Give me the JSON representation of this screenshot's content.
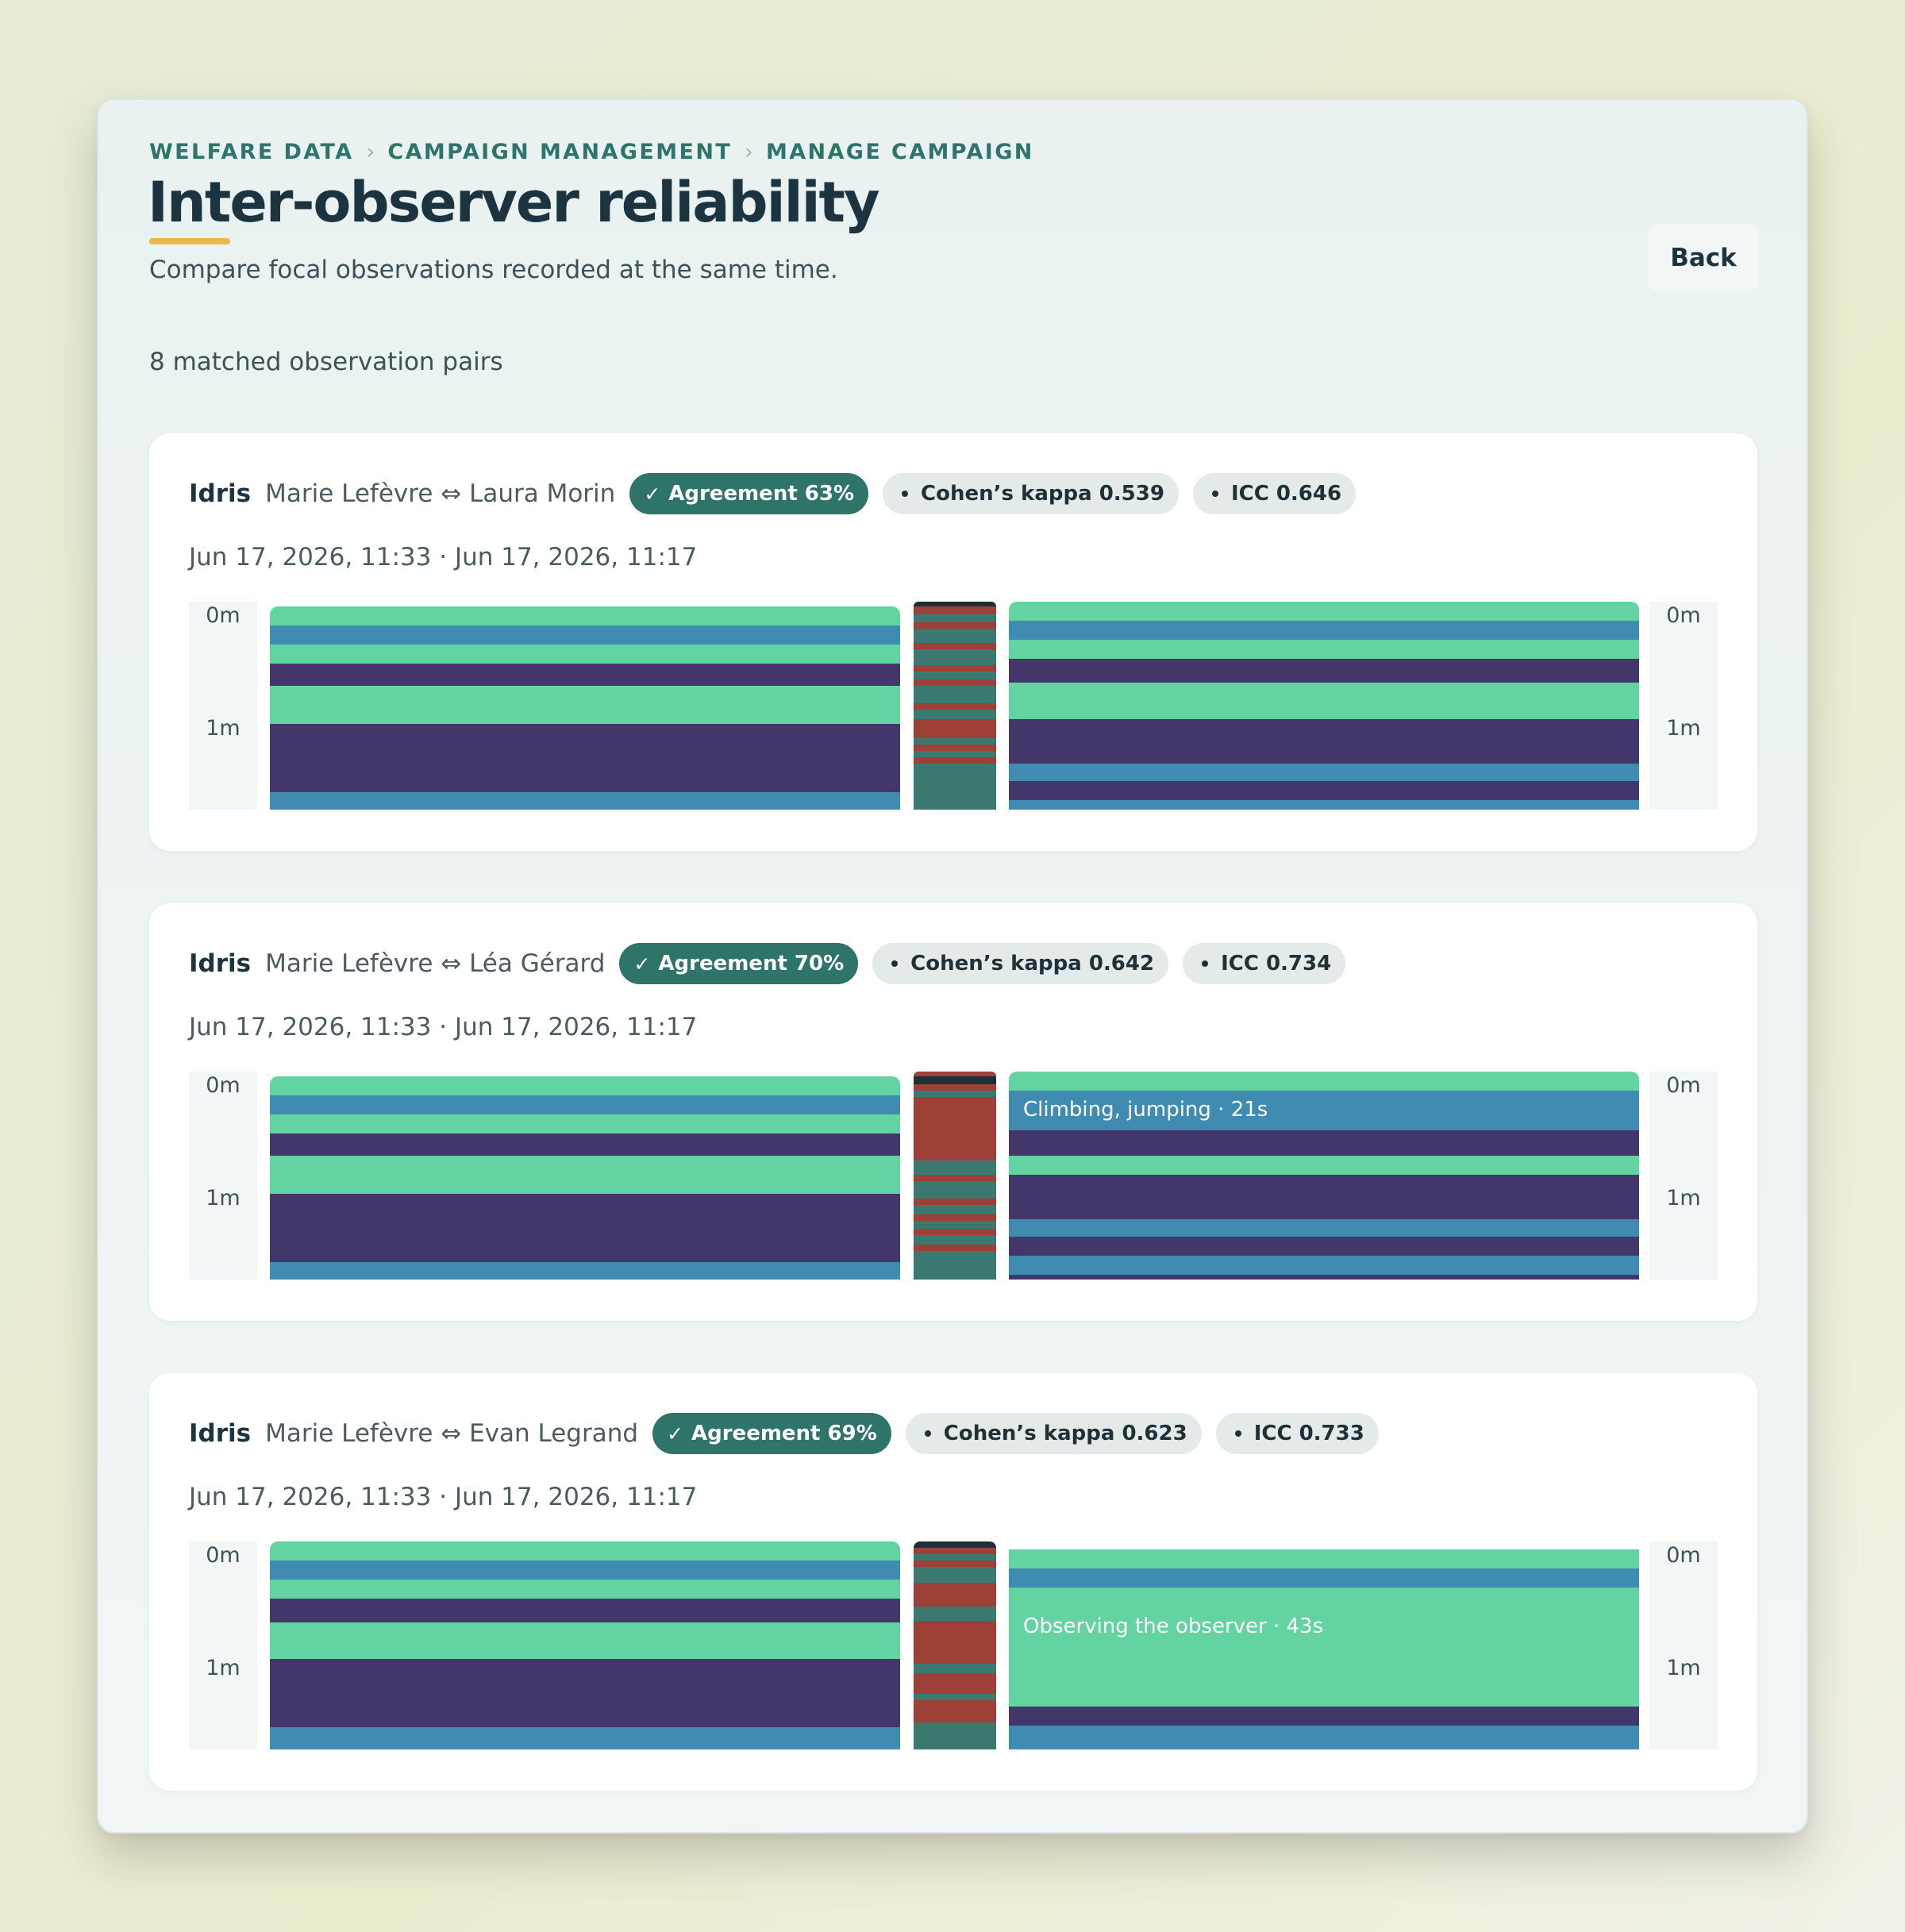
{
  "breadcrumb": [
    "WELFARE DATA",
    "CAMPAIGN MANAGEMENT",
    "MANAGE CAMPAIGN"
  ],
  "title": "Inter-observer reliability",
  "subtitle": "Compare focal observations recorded at the same time.",
  "back_label": "Back",
  "pairs_count": "8 matched observation pairs",
  "colors": {
    "accent": "#2f7468",
    "title_underline": "#e9b94a",
    "seg_green": "#64d3a2",
    "seg_blue": "#3f8bb2",
    "seg_purple": "#43366a",
    "agree_teal": "#3a7870",
    "disagree_red": "#9e3f38",
    "no_data": "#1f2f38"
  },
  "axis": {
    "start": "0m",
    "mid": "1m"
  },
  "cards": [
    {
      "animal": "Idris",
      "observers": "Marie Lefèvre ⇔ Laura Morin",
      "agreement": "Agreement 63%",
      "kappa": "Cohen’s kappa 0.539",
      "icc": "ICC 0.646",
      "dates": "Jun 17, 2026, 11:33 · Jun 17, 2026, 11:17",
      "right_label": ""
    },
    {
      "animal": "Idris",
      "observers": "Marie Lefèvre ⇔ Léa Gérard",
      "agreement": "Agreement 70%",
      "kappa": "Cohen’s kappa 0.642",
      "icc": "ICC 0.734",
      "dates": "Jun 17, 2026, 11:33 · Jun 17, 2026, 11:17",
      "right_label": "Climbing, jumping · 21s"
    },
    {
      "animal": "Idris",
      "observers": "Marie Lefèvre ⇔ Evan Legrand",
      "agreement": "Agreement 69%",
      "kappa": "Cohen’s kappa 0.623",
      "icc": "ICC 0.733",
      "dates": "Jun 17, 2026, 11:33 · Jun 17, 2026, 11:17",
      "right_label": "Observing the observer · 43s"
    }
  ]
}
